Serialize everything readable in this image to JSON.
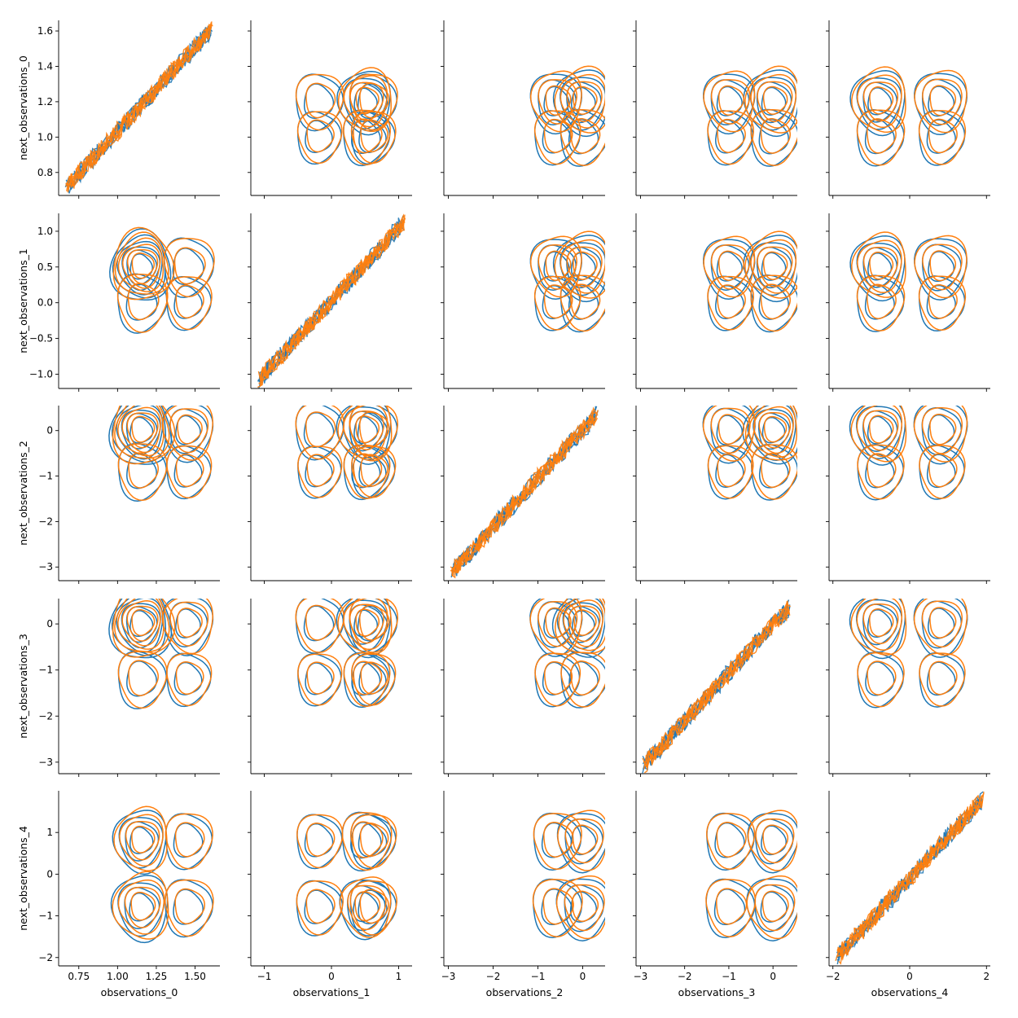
{
  "chart_data": {
    "type": "pairgrid-kde",
    "colors": {
      "series_a": "#1f77b4",
      "series_b": "#ff7f0e"
    },
    "grid": false,
    "x_variables": [
      {
        "label": "observations_0",
        "lim": [
          0.62,
          1.66
        ],
        "ticks": [
          0.75,
          1.0,
          1.25,
          1.5
        ],
        "tick_labels": [
          "0.75",
          "1.00",
          "1.25",
          "1.50"
        ]
      },
      {
        "label": "observations_1",
        "lim": [
          -1.2,
          1.2
        ],
        "ticks": [
          -1,
          0,
          1
        ],
        "tick_labels": [
          "−1",
          "0",
          "1"
        ]
      },
      {
        "label": "observations_2",
        "lim": [
          -3.1,
          0.5
        ],
        "ticks": [
          -3,
          -2,
          -1,
          0
        ],
        "tick_labels": [
          "−3",
          "−2",
          "−1",
          "0"
        ]
      },
      {
        "label": "observations_3",
        "lim": [
          -3.1,
          0.55
        ],
        "ticks": [
          -3,
          -2,
          -1,
          0
        ],
        "tick_labels": [
          "−3",
          "−2",
          "−1",
          "0"
        ]
      },
      {
        "label": "observations_4",
        "lim": [
          -2.1,
          2.1
        ],
        "ticks": [
          -2,
          0,
          2
        ],
        "tick_labels": [
          "−2",
          "0",
          "2"
        ]
      }
    ],
    "y_variables": [
      {
        "label": "next_observations_0",
        "lim": [
          0.67,
          1.66
        ],
        "ticks": [
          0.8,
          1.0,
          1.2,
          1.4,
          1.6
        ],
        "tick_labels": [
          "0.8",
          "1.0",
          "1.2",
          "1.4",
          "1.6"
        ]
      },
      {
        "label": "next_observations_1",
        "lim": [
          -1.2,
          1.25
        ],
        "ticks": [
          -1.0,
          -0.5,
          0.0,
          0.5,
          1.0
        ],
        "tick_labels": [
          "−1.0",
          "−0.5",
          "0.0",
          "0.5",
          "1.0"
        ]
      },
      {
        "label": "next_observations_2",
        "lim": [
          -3.3,
          0.55
        ],
        "ticks": [
          -3,
          -2,
          -1,
          0
        ],
        "tick_labels": [
          "−3",
          "−2",
          "−1",
          "0"
        ]
      },
      {
        "label": "next_observations_3",
        "lim": [
          -3.25,
          0.55
        ],
        "ticks": [
          -3,
          -2,
          -1,
          0
        ],
        "tick_labels": [
          "−3",
          "−2",
          "−1",
          "0"
        ]
      },
      {
        "label": "next_observations_4",
        "lim": [
          -2.2,
          2.0
        ],
        "ticks": [
          -2,
          -1,
          0,
          1
        ],
        "tick_labels": [
          "−2",
          "−1",
          "0",
          "1"
        ]
      }
    ],
    "modes_x": [
      [
        [
          1.15,
          0.8
        ],
        [
          1.45,
          0.35
        ]
      ],
      [
        [
          0.5,
          0.5
        ],
        [
          -0.2,
          0.25
        ],
        [
          0.6,
          0.25
        ]
      ],
      [
        [
          0.0,
          0.6
        ],
        [
          -0.6,
          0.4
        ]
      ],
      [
        [
          0.0,
          0.6
        ],
        [
          -1.0,
          0.4
        ]
      ],
      [
        [
          -0.8,
          0.55
        ],
        [
          0.8,
          0.45
        ]
      ]
    ],
    "modes_y": [
      [
        [
          1.2,
          0.7
        ],
        [
          1.0,
          0.3
        ]
      ],
      [
        [
          0.5,
          0.7
        ],
        [
          0.0,
          0.3
        ]
      ],
      [
        [
          0.0,
          0.75
        ],
        [
          -0.9,
          0.25
        ]
      ],
      [
        [
          0.0,
          0.75
        ],
        [
          -1.2,
          0.25
        ]
      ],
      [
        [
          -0.8,
          0.55
        ],
        [
          0.8,
          0.45
        ]
      ]
    ]
  }
}
